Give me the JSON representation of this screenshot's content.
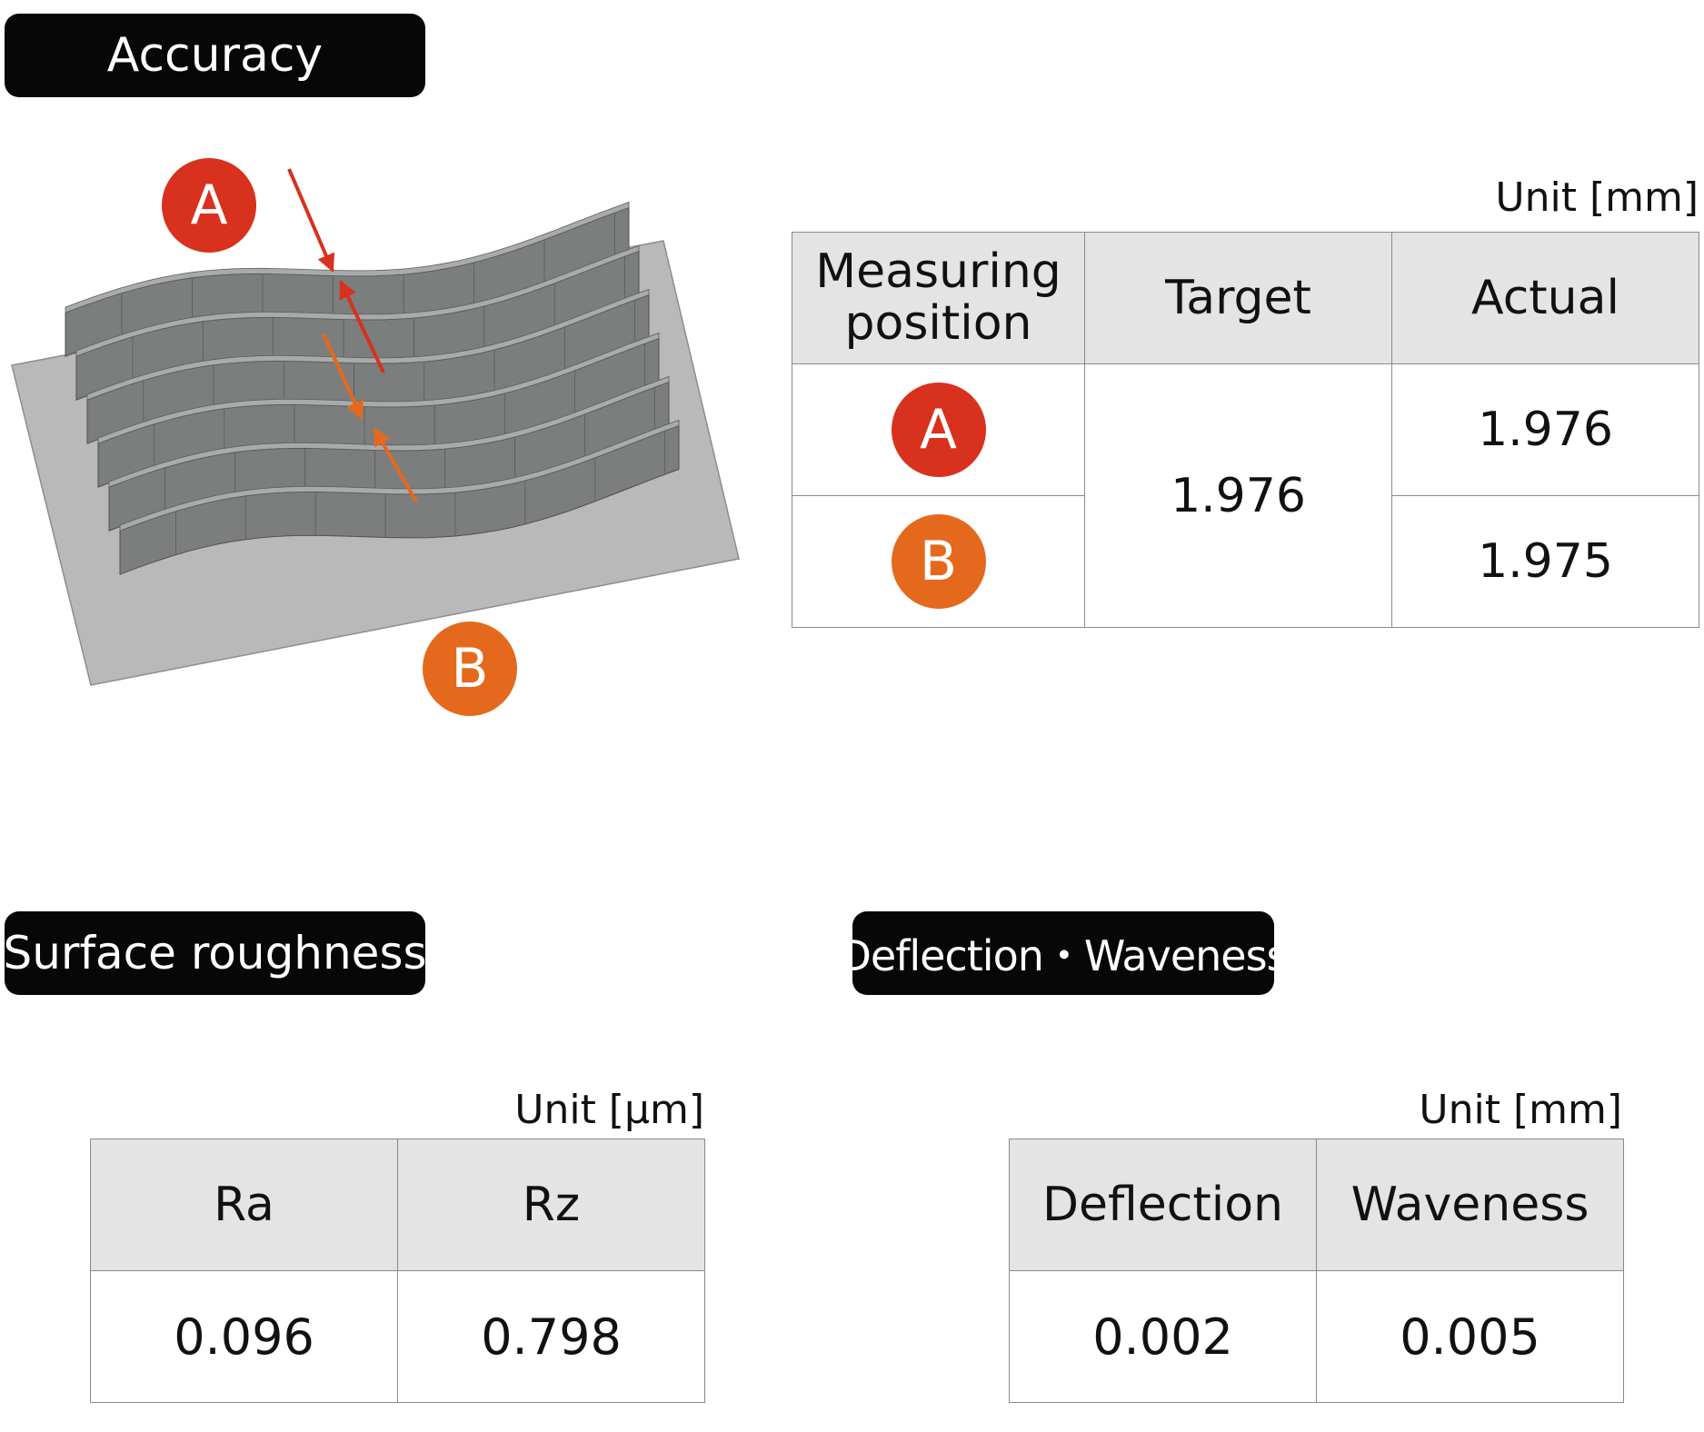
{
  "sections": {
    "accuracy": {
      "title": "Accuracy"
    },
    "surface_roughness": {
      "title": "Surface roughness"
    },
    "deflection_waveness": {
      "title": "Deflection・Waveness"
    }
  },
  "colors": {
    "marker_a": "#d8311d",
    "marker_b": "#e5691c",
    "header_fill": "#e4e4e4",
    "badge_bg": "#070707"
  },
  "accuracy_table": {
    "unit": "Unit [mm]",
    "headers": [
      "Measuring\nposition",
      "Target",
      "Actual"
    ],
    "rows": [
      {
        "position": "A",
        "target": "1.976",
        "actual": "1.976"
      },
      {
        "position": "B",
        "target": "1.976",
        "actual": "1.975"
      }
    ]
  },
  "figure": {
    "marker_a": "A",
    "marker_b": "B"
  },
  "roughness_table": {
    "unit": "Unit [μm]",
    "headers": [
      "Ra",
      "Rz"
    ],
    "values": [
      "0.096",
      "0.798"
    ]
  },
  "deflection_table": {
    "unit": "Unit [mm]",
    "headers": [
      "Deflection",
      "Waveness"
    ],
    "values": [
      "0.002",
      "0.005"
    ]
  }
}
